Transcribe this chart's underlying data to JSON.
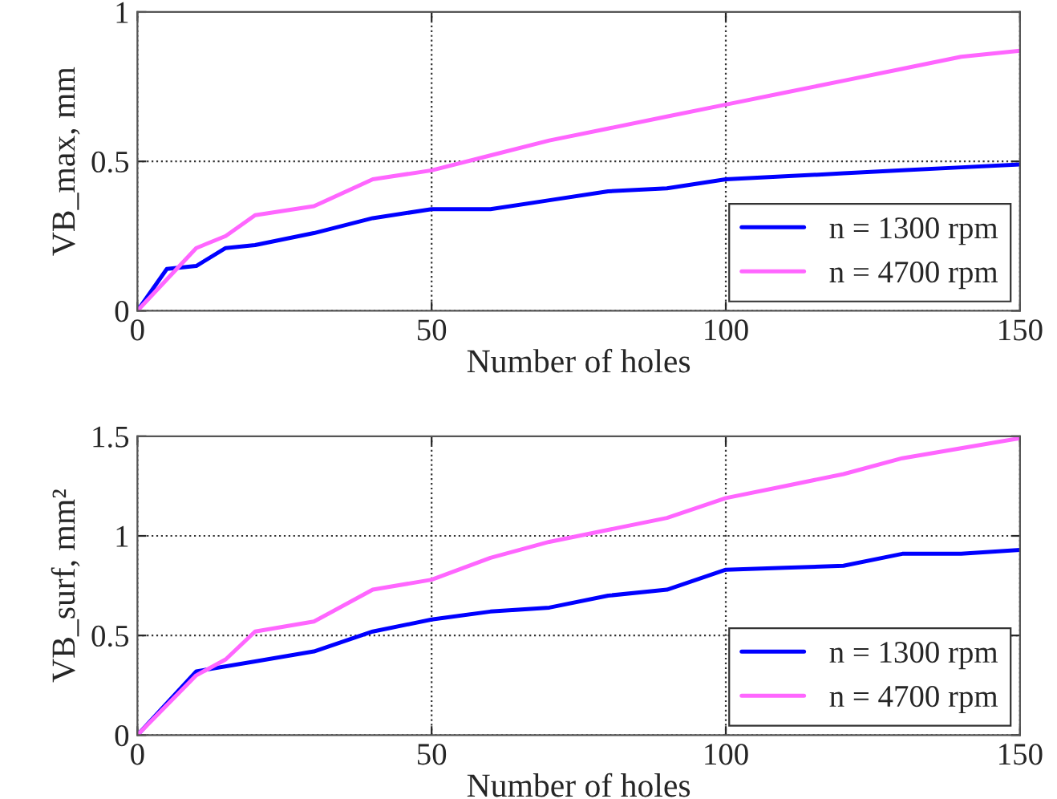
{
  "chart_data": [
    {
      "type": "line",
      "xlabel": "Number of holes",
      "ylabel": "VB_max, mm",
      "xlim": [
        0,
        150
      ],
      "xticks": [
        0,
        50,
        100,
        150
      ],
      "ylim": [
        0,
        1
      ],
      "yticks": [
        0,
        0.5,
        1
      ],
      "grid": true,
      "legend": "bottom right",
      "series": [
        {
          "name": "n = 1300 rpm",
          "color": "#0000ff",
          "x": [
            0,
            5,
            10,
            15,
            20,
            30,
            40,
            50,
            60,
            70,
            80,
            90,
            100,
            110,
            120,
            130,
            140,
            150
          ],
          "values": [
            0,
            0.14,
            0.15,
            0.21,
            0.22,
            0.26,
            0.31,
            0.34,
            0.34,
            0.37,
            0.4,
            0.41,
            0.44,
            0.45,
            0.46,
            0.47,
            0.48,
            0.49
          ]
        },
        {
          "name": "n = 4700 rpm",
          "color": "#ff66ff",
          "x": [
            0,
            10,
            15,
            20,
            30,
            40,
            50,
            60,
            70,
            80,
            90,
            100,
            110,
            120,
            130,
            140,
            150
          ],
          "values": [
            0,
            0.21,
            0.25,
            0.32,
            0.35,
            0.44,
            0.47,
            0.52,
            0.57,
            0.61,
            0.65,
            0.69,
            0.73,
            0.77,
            0.81,
            0.85,
            0.87
          ]
        }
      ]
    },
    {
      "type": "line",
      "xlabel": "Number of holes",
      "ylabel": "VB_surf, mm²",
      "xlim": [
        0,
        150
      ],
      "xticks": [
        0,
        50,
        100,
        150
      ],
      "ylim": [
        0,
        1.5
      ],
      "yticks": [
        0,
        0.5,
        1,
        1.5
      ],
      "grid": true,
      "legend": "bottom right",
      "series": [
        {
          "name": "n = 1300 rpm",
          "color": "#0000ff",
          "x": [
            0,
            10,
            20,
            30,
            40,
            50,
            60,
            70,
            80,
            90,
            100,
            110,
            120,
            130,
            140,
            150
          ],
          "values": [
            0,
            0.32,
            0.37,
            0.42,
            0.52,
            0.58,
            0.62,
            0.64,
            0.7,
            0.73,
            0.83,
            0.84,
            0.85,
            0.91,
            0.91,
            0.93
          ]
        },
        {
          "name": "n = 4700 rpm",
          "color": "#ff66ff",
          "x": [
            0,
            10,
            15,
            20,
            30,
            40,
            50,
            60,
            70,
            80,
            90,
            100,
            110,
            120,
            130,
            140,
            150
          ],
          "values": [
            0,
            0.3,
            0.38,
            0.52,
            0.57,
            0.73,
            0.78,
            0.89,
            0.97,
            1.03,
            1.09,
            1.19,
            1.25,
            1.31,
            1.39,
            1.44,
            1.49
          ]
        }
      ]
    }
  ]
}
